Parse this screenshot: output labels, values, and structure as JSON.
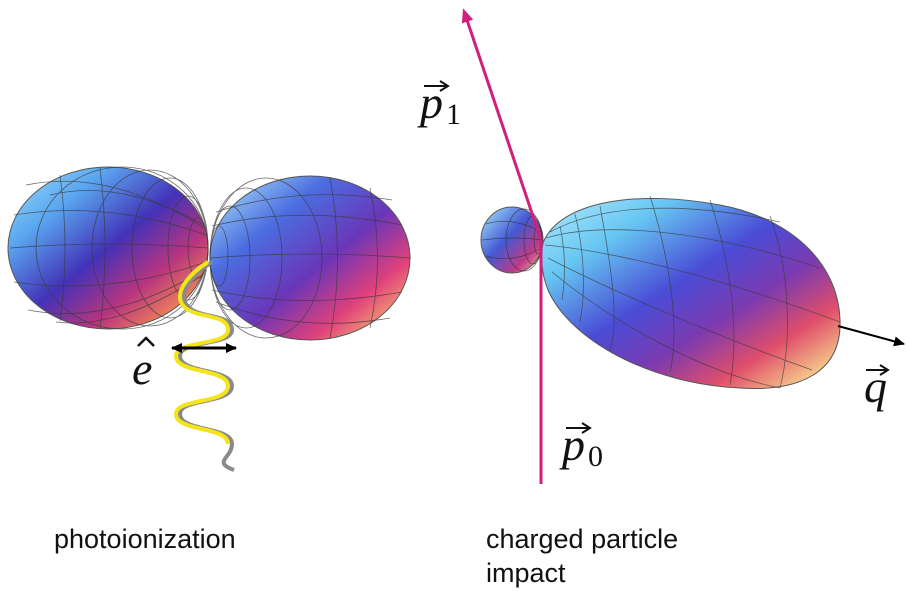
{
  "figure": {
    "left_panel": {
      "vector_symbol": "e",
      "vector_accent": "hat",
      "caption": "photoionization"
    },
    "right_panel": {
      "p1_symbol": "p",
      "p1_subscript": "1",
      "p0_symbol": "p",
      "p0_subscript": "0",
      "q_symbol": "q",
      "caption_line1": "charged particle",
      "caption_line2": "impact"
    },
    "colors": {
      "beam": "#d0207e",
      "photon_wave": "#f3e51a",
      "photon_wave_shadow": "#8a8a8a",
      "arrow": "#000000",
      "mesh_lines": "#3a3a3a"
    }
  }
}
